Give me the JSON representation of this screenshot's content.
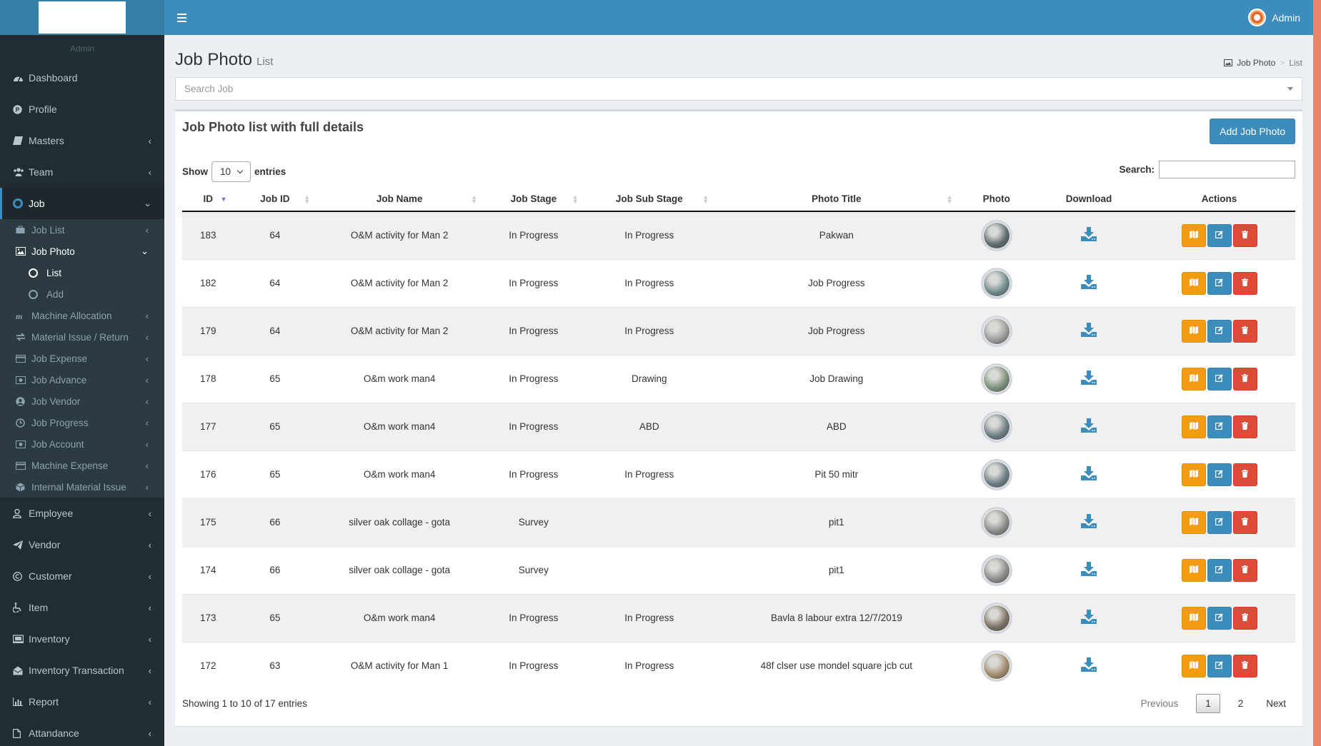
{
  "app": {
    "user_role": "Admin",
    "top_user_name": "Admin"
  },
  "colors": {
    "header": "#3c8dbc",
    "sidebar": "#222d32",
    "accent_orange": "#f39c12",
    "accent_red": "#dd4b39"
  },
  "sidebar": {
    "items": [
      {
        "label": "Dashboard",
        "icon": "dashboard-icon",
        "chevron": false
      },
      {
        "label": "Profile",
        "icon": "profile-icon",
        "chevron": false
      },
      {
        "label": "Masters",
        "icon": "book-icon",
        "chevron": true
      },
      {
        "label": "Team",
        "icon": "users-icon",
        "chevron": true
      },
      {
        "label": "Job",
        "icon": "lifebuoy-icon",
        "chevron": true
      }
    ],
    "job_sub": [
      {
        "label": "Job List",
        "icon": "briefcase-icon"
      },
      {
        "label": "Job Photo",
        "icon": "image-icon"
      }
    ],
    "job_photo_sub": [
      {
        "label": "List"
      },
      {
        "label": "Add"
      }
    ],
    "job_sub_rest": [
      {
        "label": "Machine Allocation",
        "icon": "machine-icon"
      },
      {
        "label": "Material Issue / Return",
        "icon": "exchange-icon"
      },
      {
        "label": "Job Expense",
        "icon": "card-icon"
      },
      {
        "label": "Job Advance",
        "icon": "money-icon"
      },
      {
        "label": "Job Vendor",
        "icon": "user-circle-icon"
      },
      {
        "label": "Job Progress",
        "icon": "clock-icon"
      },
      {
        "label": "Job Account",
        "icon": "money-icon"
      },
      {
        "label": "Machine Expense",
        "icon": "card-icon"
      },
      {
        "label": "Internal Material Issue",
        "icon": "cube-icon"
      }
    ],
    "items_bottom": [
      {
        "label": "Employee",
        "icon": "user-icon"
      },
      {
        "label": "Vendor",
        "icon": "paper-plane-icon"
      },
      {
        "label": "Customer",
        "icon": "copyright-icon"
      },
      {
        "label": "Item",
        "icon": "wheelchair-icon"
      },
      {
        "label": "Inventory",
        "icon": "inventory-icon"
      },
      {
        "label": "Inventory Transaction",
        "icon": "envelope-open-icon"
      },
      {
        "label": "Report",
        "icon": "bar-chart-icon"
      },
      {
        "label": "Attandance",
        "icon": "file-icon"
      }
    ]
  },
  "page": {
    "title": "Job Photo",
    "subtitle": "List",
    "breadcrumb": {
      "parent": "Job Photo",
      "current": "List"
    },
    "search_job_placeholder": "Search Job"
  },
  "box": {
    "title": "Job Photo list with full details",
    "add_button": "Add Job Photo",
    "show_label": "Show",
    "entries_value": "10",
    "entries_label": "entries",
    "search_label": "Search:"
  },
  "table": {
    "headers": [
      "ID",
      "Job ID",
      "Job Name",
      "Job Stage",
      "Job Sub Stage",
      "Photo Title",
      "Photo",
      "Download",
      "Actions"
    ],
    "rows": [
      {
        "id": "183",
        "job_id": "64",
        "job_name": "O&M activity for Man 2",
        "stage": "In Progress",
        "sub_stage": "In Progress",
        "title": "Pakwan",
        "thumb": "#5d6a6e"
      },
      {
        "id": "182",
        "job_id": "64",
        "job_name": "O&M activity for Man 2",
        "stage": "In Progress",
        "sub_stage": "In Progress",
        "title": "Job Progress",
        "thumb": "#6f8a8c"
      },
      {
        "id": "179",
        "job_id": "64",
        "job_name": "O&M activity for Man 2",
        "stage": "In Progress",
        "sub_stage": "In Progress",
        "title": "Job Progress",
        "thumb": "#9a9a98"
      },
      {
        "id": "178",
        "job_id": "65",
        "job_name": "O&m work man4",
        "stage": "In Progress",
        "sub_stage": "Drawing",
        "title": "Job Drawing",
        "thumb": "#7b8f7a"
      },
      {
        "id": "177",
        "job_id": "65",
        "job_name": "O&m work man4",
        "stage": "In Progress",
        "sub_stage": "ABD",
        "title": "ABD",
        "thumb": "#6c7c84"
      },
      {
        "id": "176",
        "job_id": "65",
        "job_name": "O&m work man4",
        "stage": "In Progress",
        "sub_stage": "In Progress",
        "title": "Pit 50 mitr",
        "thumb": "#6c7c84"
      },
      {
        "id": "175",
        "job_id": "66",
        "job_name": "silver oak collage - gota",
        "stage": "Survey",
        "sub_stage": "",
        "title": "pit1",
        "thumb": "#8a8a88"
      },
      {
        "id": "174",
        "job_id": "66",
        "job_name": "silver oak collage - gota",
        "stage": "Survey",
        "sub_stage": "",
        "title": "pit1",
        "thumb": "#8a8a88"
      },
      {
        "id": "173",
        "job_id": "65",
        "job_name": "O&m work man4",
        "stage": "In Progress",
        "sub_stage": "In Progress",
        "title": "Bavla 8 labour extra 12/7/2019",
        "thumb": "#7a7060"
      },
      {
        "id": "172",
        "job_id": "63",
        "job_name": "O&M activity for Man 1",
        "stage": "In Progress",
        "sub_stage": "In Progress",
        "title": "48f clser use mondel square jcb cut",
        "thumb": "#a08a6a"
      }
    ]
  },
  "footer": {
    "info": "Showing 1 to 10 of 17 entries",
    "previous": "Previous",
    "pages": [
      "1",
      "2"
    ],
    "next": "Next"
  }
}
